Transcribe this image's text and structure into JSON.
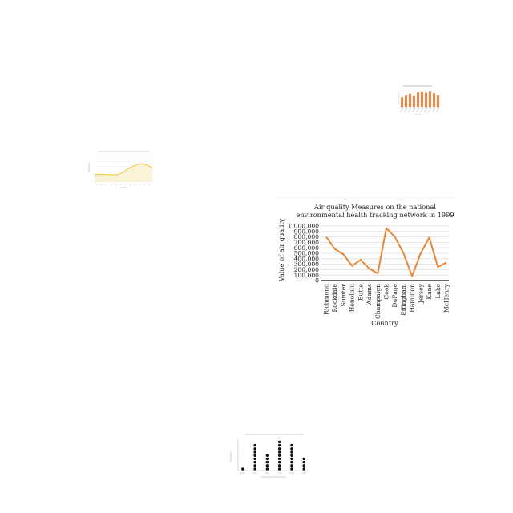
{
  "chart_data": [
    {
      "type": "line",
      "title": "Air quality Measures on the national environmental health tracking network in 1999",
      "title_lines": [
        "Air quality Measures on the national",
        "environmental health tracking network in 1999"
      ],
      "xlabel": "Country",
      "ylabel": "Value of air quality",
      "categories": [
        "Richmond",
        "Rockdale",
        "Sumter",
        "Honolulu",
        "Butte",
        "Adams",
        "Champaign",
        "Cook",
        "DuPage",
        "Effingham",
        "Hamilton",
        "Jersey",
        "Kane",
        "Lake",
        "McHenry"
      ],
      "values": [
        800000,
        580000,
        480000,
        270000,
        380000,
        220000,
        130000,
        960000,
        800000,
        500000,
        80000,
        500000,
        790000,
        250000,
        330000
      ],
      "ylim": [
        0,
        1000000
      ],
      "yticks": [
        0,
        100000,
        200000,
        300000,
        400000,
        500000,
        600000,
        700000,
        800000,
        900000,
        1000000
      ],
      "ytick_labels": [
        "0",
        "100,000",
        "200,000",
        "300,000",
        "400,000",
        "500,000",
        "600,000",
        "700,000",
        "800,000",
        "900,000",
        "1,000,000"
      ],
      "grid": true,
      "color": "#e6873a"
    },
    {
      "type": "bar",
      "title": "",
      "xlabel": "",
      "ylabel": "",
      "values": [
        60,
        70,
        82,
        68,
        90,
        92,
        88,
        94,
        85,
        72
      ],
      "ylim": [
        0,
        100
      ],
      "color": "#e8874a"
    },
    {
      "type": "area",
      "title": "",
      "xlabel": "",
      "ylabel": "",
      "values": [
        30,
        30,
        29,
        28,
        29,
        38,
        55,
        65,
        72,
        68,
        55
      ],
      "ylim": [
        0,
        100
      ],
      "color": "#f2c23a"
    },
    {
      "type": "scatter",
      "title": "",
      "xlabel": "",
      "ylabel": "",
      "values": [
        1,
        0,
        8,
        0,
        5,
        0,
        9,
        0,
        8,
        0,
        4
      ],
      "ylim": [
        0,
        10
      ],
      "color": "#111111"
    }
  ]
}
